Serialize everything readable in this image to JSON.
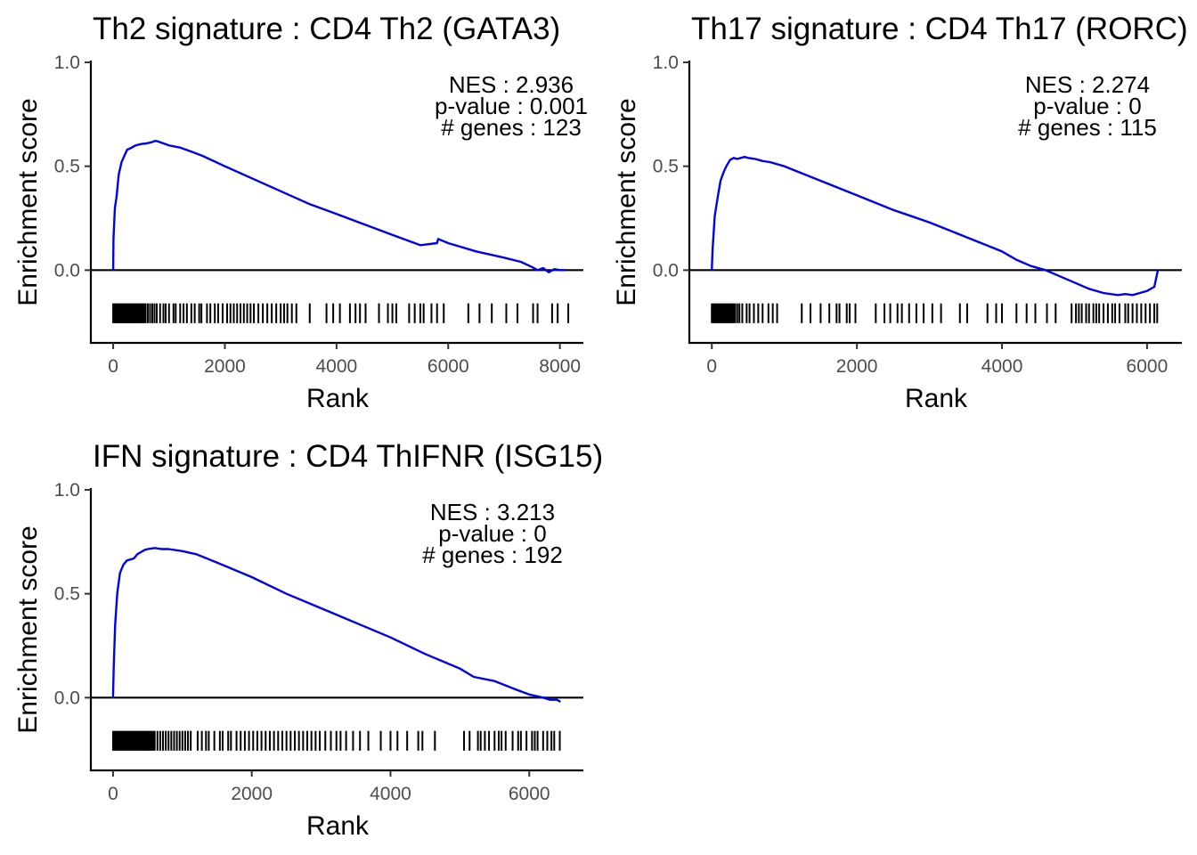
{
  "chart_data": [
    {
      "type": "line",
      "title": "Th2 signature : CD4 Th2 (GATA3)",
      "xlabel": "Rank",
      "ylabel": "Enrichment score",
      "xlim": [
        -400,
        8420
      ],
      "ylim": [
        -0.35,
        1.0
      ],
      "xticks": [
        0,
        2000,
        4000,
        6000,
        8000
      ],
      "xtick_labels": [
        "0",
        "2000",
        "4000",
        "6000",
        "8000"
      ],
      "yticks": [
        0.0,
        0.5,
        1.0
      ],
      "ytick_labels": [
        "0.0",
        "0.5",
        "1.0"
      ],
      "annotation": [
        "NES : 2.936",
        "p-value : 0.001",
        "# genes : 123"
      ],
      "line_color": "#0000ee",
      "series": [
        {
          "x": [
            0,
            5,
            30,
            60,
            100,
            150,
            200,
            250,
            300,
            400,
            500,
            600,
            700,
            750,
            800,
            900,
            1000,
            1200,
            1400,
            1600,
            1800,
            2000,
            2500,
            3000,
            3500,
            4000,
            4500,
            5000,
            5500,
            5800,
            5820,
            6000,
            6500,
            7000,
            7300,
            7500,
            7600,
            7700,
            7800,
            7900,
            8000,
            8100
          ],
          "y": [
            0.0,
            0.15,
            0.3,
            0.35,
            0.46,
            0.52,
            0.55,
            0.58,
            0.585,
            0.6,
            0.607,
            0.61,
            0.617,
            0.622,
            0.62,
            0.61,
            0.6,
            0.59,
            0.57,
            0.55,
            0.525,
            0.5,
            0.44,
            0.38,
            0.32,
            0.27,
            0.22,
            0.17,
            0.12,
            0.13,
            0.15,
            0.13,
            0.09,
            0.06,
            0.04,
            0.015,
            0.0,
            0.01,
            -0.01,
            0.005,
            0.0,
            0.0
          ]
        }
      ],
      "hits": [
        0,
        20,
        40,
        60,
        80,
        100,
        120,
        140,
        160,
        180,
        200,
        220,
        240,
        260,
        280,
        300,
        320,
        340,
        360,
        380,
        400,
        420,
        440,
        460,
        480,
        500,
        520,
        540,
        560,
        580,
        620,
        660,
        700,
        740,
        780,
        840,
        900,
        940,
        1000,
        1080,
        1120,
        1200,
        1260,
        1320,
        1400,
        1460,
        1540,
        1580,
        1680,
        1740,
        1820,
        1880,
        1960,
        2040,
        2100,
        2160,
        2220,
        2280,
        2340,
        2400,
        2460,
        2520,
        2600,
        2680,
        2760,
        2840,
        2920,
        3000,
        3060,
        3120,
        3200,
        3280,
        3520,
        3820,
        3940,
        4060,
        4240,
        4340,
        4420,
        4520,
        4760,
        4920,
        5000,
        5070,
        5300,
        5400,
        5500,
        5560,
        5700,
        5800,
        5920,
        6360,
        6560,
        6780,
        7040,
        7240,
        7520,
        7600,
        7860,
        7960,
        8150
      ]
    },
    {
      "type": "line",
      "title": "Th17 signature : CD4 Th17 (RORC)",
      "xlabel": "Rank",
      "ylabel": "Enrichment score",
      "xlim": [
        -310,
        6480
      ],
      "ylim": [
        -0.35,
        1.0
      ],
      "xticks": [
        0,
        2000,
        4000,
        6000
      ],
      "xtick_labels": [
        "0",
        "2000",
        "4000",
        "6000"
      ],
      "yticks": [
        0.0,
        0.5,
        1.0
      ],
      "ytick_labels": [
        "0.0",
        "0.5",
        "1.0"
      ],
      "annotation": [
        "NES : 2.274",
        "p-value : 0",
        "# genes : 115"
      ],
      "line_color": "#0000ee",
      "series": [
        {
          "x": [
            0,
            10,
            40,
            80,
            120,
            160,
            200,
            250,
            300,
            350,
            400,
            450,
            500,
            600,
            700,
            800,
            1000,
            1500,
            2000,
            2500,
            3000,
            3500,
            4000,
            4200,
            4400,
            4600,
            4800,
            5000,
            5200,
            5400,
            5500,
            5600,
            5700,
            5800,
            5900,
            6000,
            6100,
            6150
          ],
          "y": [
            0.0,
            0.1,
            0.26,
            0.35,
            0.43,
            0.47,
            0.5,
            0.53,
            0.54,
            0.535,
            0.54,
            0.545,
            0.54,
            0.535,
            0.525,
            0.52,
            0.5,
            0.43,
            0.36,
            0.29,
            0.23,
            0.16,
            0.09,
            0.05,
            0.02,
            0.0,
            -0.03,
            -0.06,
            -0.09,
            -0.11,
            -0.115,
            -0.12,
            -0.115,
            -0.12,
            -0.11,
            -0.1,
            -0.08,
            0.0
          ]
        }
      ],
      "hits": [
        0,
        20,
        40,
        60,
        80,
        100,
        120,
        140,
        160,
        180,
        200,
        220,
        240,
        260,
        280,
        300,
        320,
        350,
        380,
        420,
        480,
        520,
        580,
        640,
        700,
        780,
        840,
        900,
        1240,
        1360,
        1500,
        1620,
        1720,
        1760,
        1860,
        1900,
        1980,
        2260,
        2380,
        2460,
        2560,
        2620,
        2720,
        2820,
        2920,
        3040,
        3160,
        3420,
        3520,
        3800,
        3920,
        4000,
        4200,
        4340,
        4460,
        4620,
        4740,
        4960,
        5020,
        5060,
        5100,
        5160,
        5200,
        5260,
        5300,
        5340,
        5400,
        5460,
        5520,
        5560,
        5620,
        5700,
        5740,
        5800,
        5860,
        5920,
        5980,
        6040,
        6100,
        6140
      ]
    },
    {
      "type": "line",
      "title": "IFN signature : CD4 ThIFNR (ISG15)",
      "xlabel": "Rank",
      "ylabel": "Enrichment score",
      "xlim": [
        -320,
        6780
      ],
      "ylim": [
        -0.35,
        1.0
      ],
      "xticks": [
        0,
        2000,
        4000,
        6000
      ],
      "xtick_labels": [
        "0",
        "2000",
        "4000",
        "6000"
      ],
      "yticks": [
        0.0,
        0.5,
        1.0
      ],
      "ytick_labels": [
        "0.0",
        "0.5",
        "1.0"
      ],
      "annotation": [
        "NES : 3.213",
        "p-value : 0",
        "# genes : 192"
      ],
      "line_color": "#0000ee",
      "series": [
        {
          "x": [
            0,
            10,
            30,
            60,
            100,
            150,
            200,
            250,
            300,
            350,
            400,
            450,
            500,
            600,
            700,
            800,
            1000,
            1200,
            1500,
            2000,
            2500,
            3000,
            3500,
            4000,
            4500,
            5000,
            5200,
            5500,
            5800,
            6000,
            6200,
            6300,
            6400,
            6450
          ],
          "y": [
            0.0,
            0.15,
            0.35,
            0.5,
            0.6,
            0.64,
            0.66,
            0.665,
            0.67,
            0.69,
            0.7,
            0.71,
            0.715,
            0.72,
            0.715,
            0.715,
            0.705,
            0.69,
            0.65,
            0.58,
            0.5,
            0.43,
            0.36,
            0.29,
            0.21,
            0.14,
            0.1,
            0.08,
            0.04,
            0.015,
            0.0,
            -0.01,
            -0.01,
            -0.02
          ]
        }
      ],
      "hits": [
        0,
        20,
        40,
        60,
        80,
        100,
        120,
        140,
        160,
        180,
        200,
        220,
        240,
        260,
        280,
        300,
        320,
        340,
        360,
        380,
        400,
        420,
        440,
        460,
        480,
        500,
        520,
        540,
        560,
        580,
        600,
        640,
        680,
        720,
        760,
        800,
        840,
        880,
        920,
        960,
        1000,
        1040,
        1080,
        1120,
        1220,
        1280,
        1340,
        1380,
        1460,
        1540,
        1580,
        1660,
        1700,
        1780,
        1840,
        1900,
        1960,
        2020,
        2080,
        2140,
        2200,
        2260,
        2320,
        2380,
        2440,
        2500,
        2560,
        2620,
        2680,
        2740,
        2800,
        2860,
        2920,
        2980,
        3060,
        3140,
        3220,
        3280,
        3360,
        3460,
        3560,
        3680,
        3860,
        4000,
        4100,
        4240,
        4400,
        4460,
        4640,
        5060,
        5140,
        5260,
        5300,
        5360,
        5420,
        5500,
        5560,
        5600,
        5660,
        5760,
        5840,
        5880,
        5960,
        6040,
        6080,
        6120,
        6200,
        6260,
        6320,
        6360,
        6440
      ]
    }
  ]
}
